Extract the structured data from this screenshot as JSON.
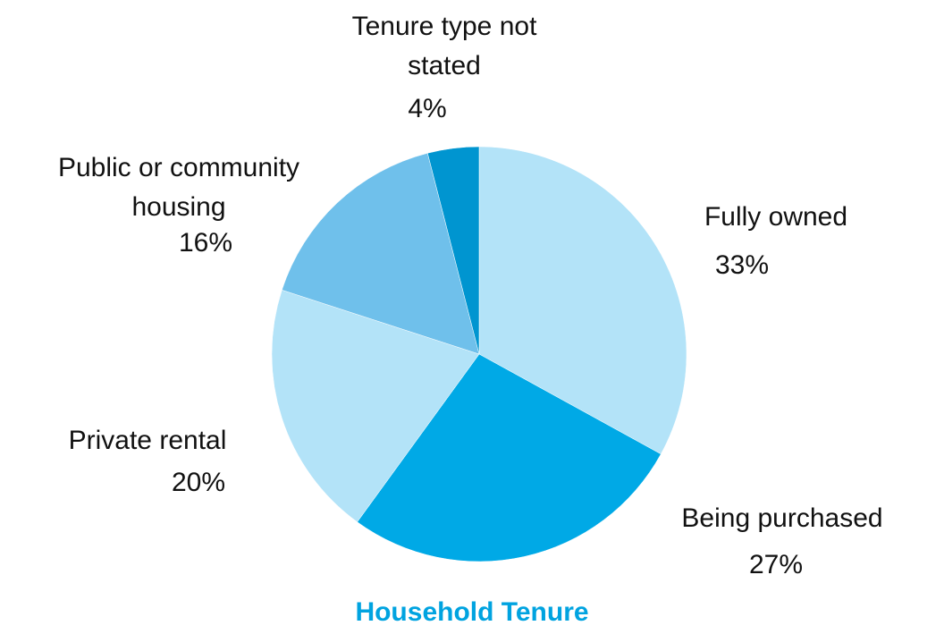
{
  "chart_data": {
    "type": "pie",
    "title": "Household Tenure",
    "categories": [
      "Fully owned",
      "Being purchased",
      "Private rental",
      "Public or community housing",
      "Tenure type not stated"
    ],
    "values": [
      33,
      27,
      20,
      16,
      4
    ],
    "value_labels": [
      "33%",
      "27%",
      "20%",
      "16%",
      "4%"
    ],
    "colors": [
      "#b3e3f8",
      "#00a9e6",
      "#b3e3f8",
      "#6fc0eb",
      "#0095d0"
    ]
  }
}
